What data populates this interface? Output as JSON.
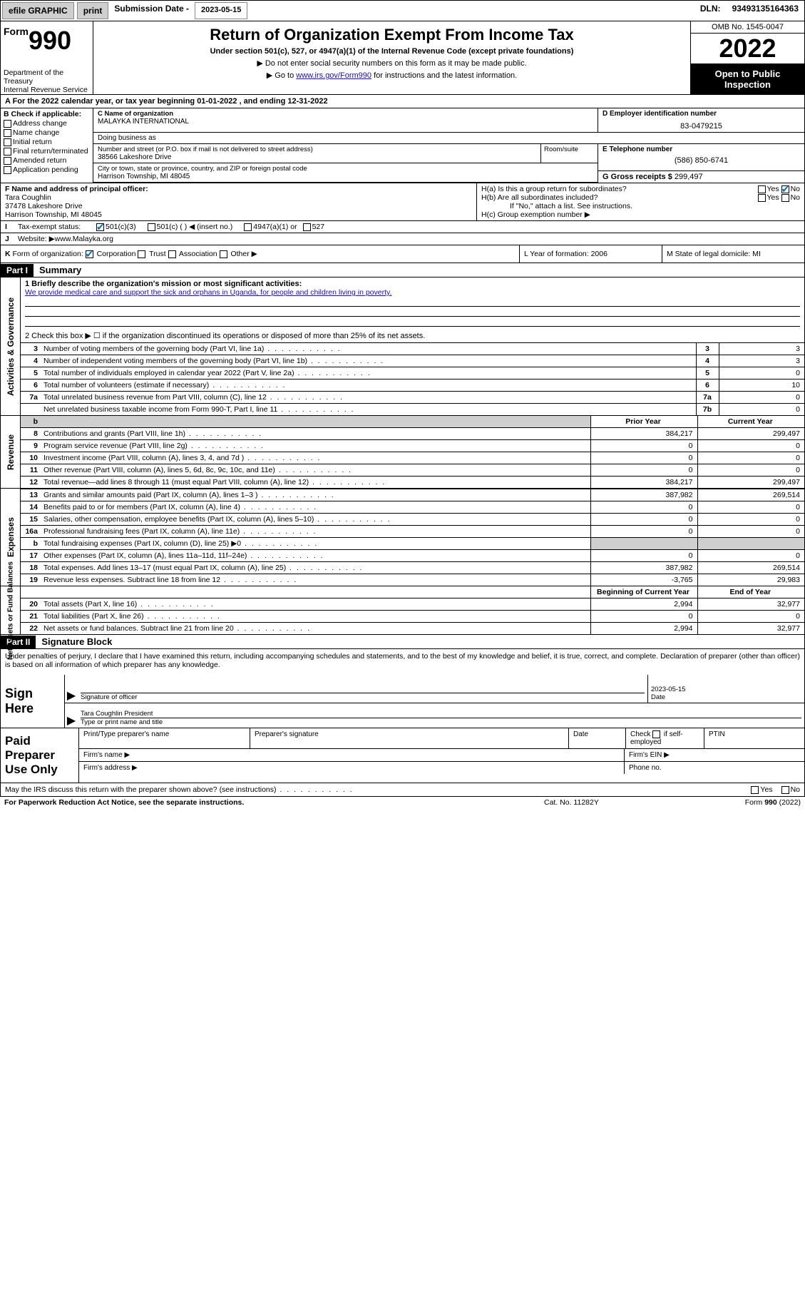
{
  "topbar": {
    "efile": "efile GRAPHIC",
    "print": "print",
    "sub_label": "Submission Date - ",
    "sub_date": "2023-05-15",
    "dln_label": "DLN: ",
    "dln": "93493135164363"
  },
  "header": {
    "form_word": "Form",
    "form_num": "990",
    "title": "Return of Organization Exempt From Income Tax",
    "subtitle": "Under section 501(c), 527, or 4947(a)(1) of the Internal Revenue Code (except private foundations)",
    "note1": "▶ Do not enter social security numbers on this form as it may be made public.",
    "note2_pre": "▶ Go to ",
    "note2_link": "www.irs.gov/Form990",
    "note2_post": " for instructions and the latest information.",
    "dept": "Department of the Treasury\nInternal Revenue Service",
    "omb": "OMB No. 1545-0047",
    "year": "2022",
    "open": "Open to Public Inspection"
  },
  "line_a": "A For the 2022 calendar year, or tax year beginning 01-01-2022   , and ending 12-31-2022",
  "col_b": {
    "label": "B Check if applicable:",
    "items": [
      "Address change",
      "Name change",
      "Initial return",
      "Final return/terminated",
      "Amended return",
      "Application pending"
    ]
  },
  "col_c": {
    "name_label": "C Name of organization",
    "name": "MALAYKA INTERNATIONAL",
    "dba_label": "Doing business as",
    "dba": "",
    "street_label": "Number and street (or P.O. box if mail is not delivered to street address)",
    "street": "38566 Lakeshore Drive",
    "room_label": "Room/suite",
    "city_label": "City or town, state or province, country, and ZIP or foreign postal code",
    "city": "Harrison Township, MI  48045"
  },
  "col_d": {
    "label": "D Employer identification number",
    "value": "83-0479215"
  },
  "col_e": {
    "label": "E Telephone number",
    "value": "(586) 850-6741"
  },
  "col_g": {
    "label": "G Gross receipts $ ",
    "value": "299,497"
  },
  "col_f": {
    "label": "F  Name and address of principal officer:",
    "name": "Tara Coughlin",
    "street": "37478 Lakeshore Drive",
    "city": "Harrison Township, MI  48045"
  },
  "col_h": {
    "a_label": "H(a)  Is this a group return for subordinates?",
    "a_yes": "Yes",
    "a_no": "No",
    "a_checked": "no",
    "b_label": "H(b)  Are all subordinates included?",
    "b_yes": "Yes",
    "b_no": "No",
    "b_note": "If \"No,\" attach a list. See instructions.",
    "c_label": "H(c)  Group exemption number ▶"
  },
  "line_i": {
    "lead": "I",
    "label": "Tax-exempt status:",
    "opts": [
      "501(c)(3)",
      "501(c) (   ) ◀ (insert no.)",
      "4947(a)(1) or",
      "527"
    ],
    "checked": 0
  },
  "line_j": {
    "lead": "J",
    "label": "Website: ▶ ",
    "value": "www.Malayka.org"
  },
  "line_k": {
    "lead": "K",
    "label": "Form of organization:",
    "opts": [
      "Corporation",
      "Trust",
      "Association",
      "Other ▶"
    ],
    "checked": 0,
    "l": "L Year of formation: 2006",
    "m": "M State of legal domicile: MI"
  },
  "part1": {
    "header": "Part I",
    "title": "Summary"
  },
  "summary": {
    "q1_label": "1  Briefly describe the organization's mission or most significant activities:",
    "q1_text": "We provide medical care and support the sick and orphans in Uganda, for people and children living in poverty.",
    "q2": "2   Check this box ▶ ☐  if the organization discontinued its operations or disposed of more than 25% of its net assets."
  },
  "governance_rows": [
    {
      "n": "3",
      "desc": "Number of voting members of the governing body (Part VI, line 1a)",
      "box": "3",
      "val": "3"
    },
    {
      "n": "4",
      "desc": "Number of independent voting members of the governing body (Part VI, line 1b)",
      "box": "4",
      "val": "3"
    },
    {
      "n": "5",
      "desc": "Total number of individuals employed in calendar year 2022 (Part V, line 2a)",
      "box": "5",
      "val": "0"
    },
    {
      "n": "6",
      "desc": "Total number of volunteers (estimate if necessary)",
      "box": "6",
      "val": "10"
    },
    {
      "n": "7a",
      "desc": "Total unrelated business revenue from Part VIII, column (C), line 12",
      "box": "7a",
      "val": "0"
    },
    {
      "n": "",
      "desc": "Net unrelated business taxable income from Form 990-T, Part I, line 11",
      "box": "7b",
      "val": "0"
    }
  ],
  "two_col_header": {
    "prior": "Prior Year",
    "current": "Current Year"
  },
  "revenue_rows": [
    {
      "n": "8",
      "desc": "Contributions and grants (Part VIII, line 1h)",
      "prior": "384,217",
      "curr": "299,497"
    },
    {
      "n": "9",
      "desc": "Program service revenue (Part VIII, line 2g)",
      "prior": "0",
      "curr": "0"
    },
    {
      "n": "10",
      "desc": "Investment income (Part VIII, column (A), lines 3, 4, and 7d )",
      "prior": "0",
      "curr": "0"
    },
    {
      "n": "11",
      "desc": "Other revenue (Part VIII, column (A), lines 5, 6d, 8c, 9c, 10c, and 11e)",
      "prior": "0",
      "curr": "0"
    },
    {
      "n": "12",
      "desc": "Total revenue—add lines 8 through 11 (must equal Part VIII, column (A), line 12)",
      "prior": "384,217",
      "curr": "299,497"
    }
  ],
  "expense_rows": [
    {
      "n": "13",
      "desc": "Grants and similar amounts paid (Part IX, column (A), lines 1–3 )",
      "prior": "387,982",
      "curr": "269,514"
    },
    {
      "n": "14",
      "desc": "Benefits paid to or for members (Part IX, column (A), line 4)",
      "prior": "0",
      "curr": "0"
    },
    {
      "n": "15",
      "desc": "Salaries, other compensation, employee benefits (Part IX, column (A), lines 5–10)",
      "prior": "0",
      "curr": "0"
    },
    {
      "n": "16a",
      "desc": "Professional fundraising fees (Part IX, column (A), line 11e)",
      "prior": "0",
      "curr": "0"
    },
    {
      "n": "b",
      "desc": "Total fundraising expenses (Part IX, column (D), line 25) ▶0",
      "prior": "grey",
      "curr": "grey"
    },
    {
      "n": "17",
      "desc": "Other expenses (Part IX, column (A), lines 11a–11d, 11f–24e)",
      "prior": "0",
      "curr": "0"
    },
    {
      "n": "18",
      "desc": "Total expenses. Add lines 13–17 (must equal Part IX, column (A), line 25)",
      "prior": "387,982",
      "curr": "269,514"
    },
    {
      "n": "19",
      "desc": "Revenue less expenses. Subtract line 18 from line 12",
      "prior": "-3,765",
      "curr": "29,983"
    }
  ],
  "balance_header": {
    "begin": "Beginning of Current Year",
    "end": "End of Year"
  },
  "balance_rows": [
    {
      "n": "20",
      "desc": "Total assets (Part X, line 16)",
      "prior": "2,994",
      "curr": "32,977"
    },
    {
      "n": "21",
      "desc": "Total liabilities (Part X, line 26)",
      "prior": "0",
      "curr": "0"
    },
    {
      "n": "22",
      "desc": "Net assets or fund balances. Subtract line 21 from line 20",
      "prior": "2,994",
      "curr": "32,977"
    }
  ],
  "part2": {
    "header": "Part II",
    "title": "Signature Block"
  },
  "sig_text": "Under penalties of perjury, I declare that I have examined this return, including accompanying schedules and statements, and to the best of my knowledge and belief, it is true, correct, and complete. Declaration of preparer (other than officer) is based on all information of which preparer has any knowledge.",
  "sign": {
    "here_1": "Sign",
    "here_2": "Here",
    "officer_label": "Signature of officer",
    "date_label": "Date",
    "date_value": "2023-05-15",
    "typed_name": "Tara Coughlin  President",
    "typed_label": "Type or print name and title"
  },
  "preparer": {
    "left_1": "Paid",
    "left_2": "Preparer",
    "left_3": "Use Only",
    "h1": "Print/Type preparer's name",
    "h2": "Preparer's signature",
    "h3": "Date",
    "h4_pre": "Check",
    "h4_post": "if self-employed",
    "h5": "PTIN",
    "firm_name": "Firm's name   ▶",
    "firm_ein": "Firm's EIN ▶",
    "firm_addr": "Firm's address ▶",
    "phone": "Phone no."
  },
  "footer": {
    "discuss": "May the IRS discuss this return with the preparer shown above? (see instructions)",
    "yes": "Yes",
    "no": "No",
    "paperwork": "For Paperwork Reduction Act Notice, see the separate instructions.",
    "cat": "Cat. No. 11282Y",
    "form_ref": "Form 990 (2022)"
  },
  "side_labels": {
    "governance": "Activities & Governance",
    "revenue": "Revenue",
    "expenses": "Expenses",
    "balance": "Net Assets or Fund Balances"
  },
  "colors": {
    "link": "#1a0dab",
    "check": "#0070c0",
    "grey": "#cfcfcf"
  }
}
